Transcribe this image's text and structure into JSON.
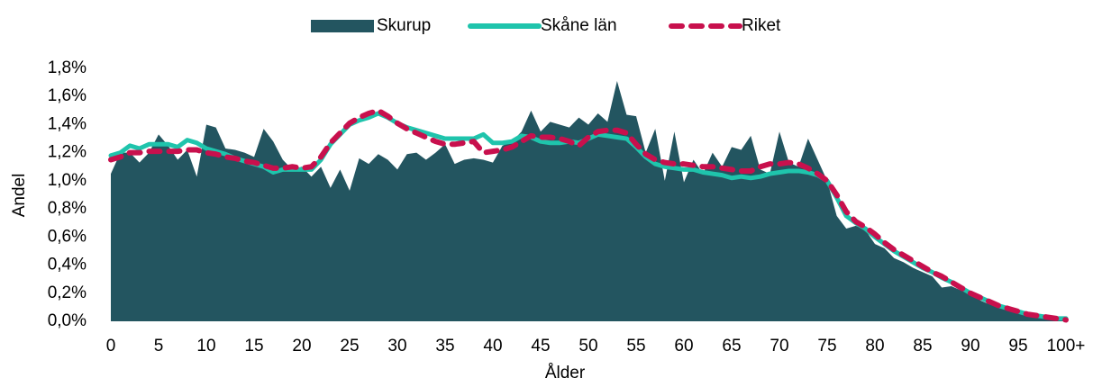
{
  "chart_data": {
    "type": "area",
    "xlabel": "Ålder",
    "ylabel": "Andel",
    "categories": [
      "0",
      null,
      null,
      null,
      null,
      "5",
      null,
      null,
      null,
      null,
      "10",
      null,
      null,
      null,
      null,
      "15",
      null,
      null,
      null,
      null,
      "20",
      null,
      null,
      null,
      null,
      "25",
      null,
      null,
      null,
      null,
      "30",
      null,
      null,
      null,
      null,
      "35",
      null,
      null,
      null,
      null,
      "40",
      null,
      null,
      null,
      null,
      "45",
      null,
      null,
      null,
      null,
      "50",
      null,
      null,
      null,
      null,
      "55",
      null,
      null,
      null,
      null,
      "60",
      null,
      null,
      null,
      null,
      "65",
      null,
      null,
      null,
      null,
      "70",
      null,
      null,
      null,
      null,
      "75",
      null,
      null,
      null,
      null,
      "80",
      null,
      null,
      null,
      null,
      "85",
      null,
      null,
      null,
      null,
      "90",
      null,
      null,
      null,
      null,
      "95",
      null,
      null,
      null,
      null,
      "100+"
    ],
    "ylim": [
      0,
      1.8
    ],
    "yticks": [
      {
        "value": 0,
        "label": "0,0%"
      },
      {
        "value": 0.2,
        "label": "0,2%"
      },
      {
        "value": 0.4,
        "label": "0,4%"
      },
      {
        "value": 0.6,
        "label": "0,6%"
      },
      {
        "value": 0.8,
        "label": "0,8%"
      },
      {
        "value": 1.0,
        "label": "1,0%"
      },
      {
        "value": 1.2,
        "label": "1,2%"
      },
      {
        "value": 1.4,
        "label": "1,4%"
      },
      {
        "value": 1.6,
        "label": "1,6%"
      },
      {
        "value": 1.8,
        "label": "1,8%"
      }
    ],
    "legend": "top",
    "series": [
      {
        "name": "Skurup",
        "type": "area",
        "color": "#235560",
        "values": [
          1.05,
          1.2,
          1.2,
          1.13,
          1.2,
          1.33,
          1.25,
          1.15,
          1.22,
          1.03,
          1.4,
          1.38,
          1.23,
          1.22,
          1.2,
          1.17,
          1.37,
          1.28,
          1.15,
          1.08,
          1.1,
          1.03,
          1.1,
          0.95,
          1.08,
          0.93,
          1.16,
          1.12,
          1.19,
          1.15,
          1.08,
          1.19,
          1.2,
          1.15,
          1.2,
          1.26,
          1.12,
          1.15,
          1.16,
          1.15,
          1.13,
          1.25,
          1.28,
          1.35,
          1.5,
          1.35,
          1.42,
          1.4,
          1.38,
          1.45,
          1.4,
          1.48,
          1.42,
          1.71,
          1.47,
          1.46,
          1.2,
          1.37,
          1.0,
          1.35,
          0.99,
          1.15,
          1.05,
          1.2,
          1.1,
          1.24,
          1.22,
          1.32,
          1.08,
          1.05,
          1.35,
          1.13,
          1.1,
          1.3,
          1.15,
          1.0,
          0.75,
          0.66,
          0.68,
          0.65,
          0.55,
          0.52,
          0.45,
          0.42,
          0.38,
          0.35,
          0.32,
          0.24,
          0.25,
          0.22,
          0.2,
          0.15,
          0.12,
          0.1,
          0.08,
          0.06,
          0.05,
          0.03,
          0.02,
          0.01,
          0.03
        ]
      },
      {
        "name": "Skåne län",
        "type": "line",
        "color": "#1fc4ac",
        "values": [
          1.18,
          1.2,
          1.25,
          1.23,
          1.26,
          1.26,
          1.26,
          1.24,
          1.29,
          1.27,
          1.23,
          1.21,
          1.19,
          1.16,
          1.14,
          1.12,
          1.1,
          1.06,
          1.08,
          1.08,
          1.08,
          1.08,
          1.15,
          1.26,
          1.33,
          1.4,
          1.43,
          1.45,
          1.48,
          1.45,
          1.41,
          1.38,
          1.36,
          1.34,
          1.32,
          1.3,
          1.3,
          1.3,
          1.3,
          1.33,
          1.27,
          1.27,
          1.28,
          1.32,
          1.31,
          1.28,
          1.27,
          1.27,
          1.28,
          1.27,
          1.3,
          1.33,
          1.32,
          1.31,
          1.3,
          1.24,
          1.17,
          1.12,
          1.1,
          1.09,
          1.08,
          1.08,
          1.06,
          1.05,
          1.04,
          1.02,
          1.03,
          1.02,
          1.03,
          1.05,
          1.06,
          1.07,
          1.07,
          1.06,
          1.04,
          1.0,
          0.88,
          0.75,
          0.7,
          0.66,
          0.6,
          0.55,
          0.5,
          0.46,
          0.42,
          0.38,
          0.35,
          0.31,
          0.28,
          0.24,
          0.2,
          0.17,
          0.14,
          0.11,
          0.09,
          0.07,
          0.05,
          0.04,
          0.03,
          0.02,
          0.02
        ]
      },
      {
        "name": "Riket",
        "type": "line",
        "dashed": true,
        "color": "#c8104d",
        "values": [
          1.15,
          1.17,
          1.2,
          1.2,
          1.21,
          1.21,
          1.21,
          1.21,
          1.22,
          1.22,
          1.2,
          1.19,
          1.17,
          1.16,
          1.14,
          1.13,
          1.11,
          1.09,
          1.09,
          1.1,
          1.09,
          1.1,
          1.17,
          1.27,
          1.34,
          1.41,
          1.45,
          1.48,
          1.5,
          1.46,
          1.41,
          1.37,
          1.34,
          1.31,
          1.28,
          1.26,
          1.26,
          1.27,
          1.28,
          1.2,
          1.21,
          1.22,
          1.24,
          1.28,
          1.32,
          1.31,
          1.31,
          1.3,
          1.28,
          1.25,
          1.31,
          1.35,
          1.36,
          1.36,
          1.34,
          1.26,
          1.19,
          1.15,
          1.13,
          1.12,
          1.12,
          1.11,
          1.1,
          1.1,
          1.09,
          1.08,
          1.07,
          1.07,
          1.1,
          1.12,
          1.12,
          1.13,
          1.12,
          1.09,
          1.05,
          1.0,
          0.9,
          0.78,
          0.71,
          0.67,
          0.62,
          0.56,
          0.51,
          0.47,
          0.43,
          0.39,
          0.35,
          0.32,
          0.28,
          0.24,
          0.2,
          0.17,
          0.14,
          0.11,
          0.09,
          0.07,
          0.05,
          0.04,
          0.03,
          0.02,
          0.01
        ]
      }
    ]
  }
}
